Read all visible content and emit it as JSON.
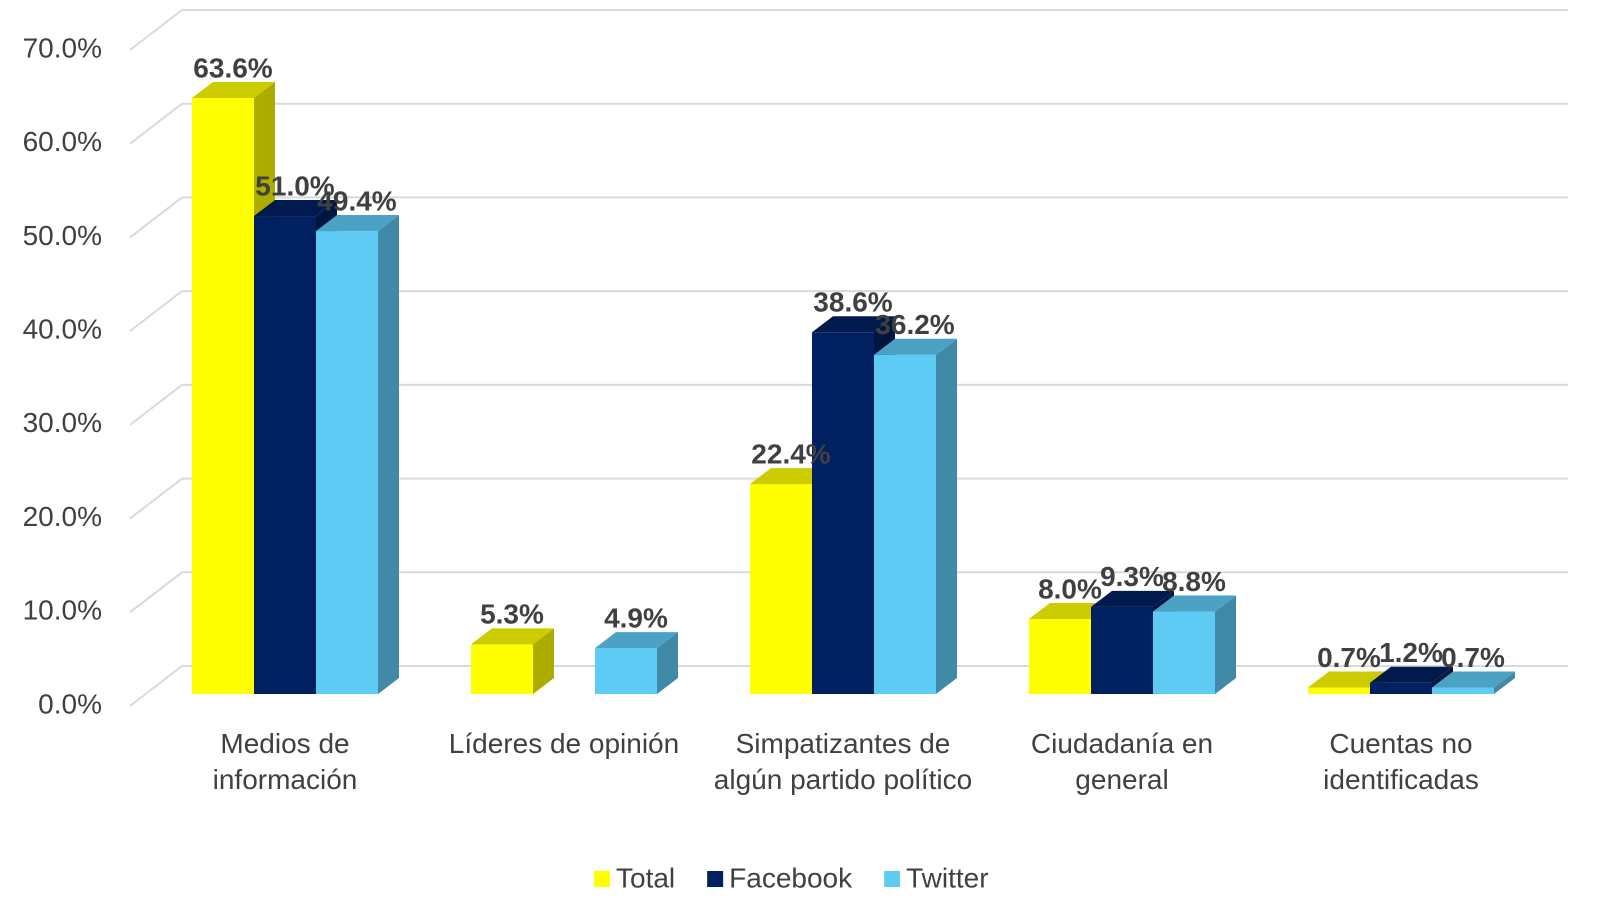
{
  "chart_data": {
    "type": "bar3d",
    "categories": [
      "Medios de información",
      "Líderes de opinión",
      "Simpatizantes de algún partido político",
      "Ciudadanía en general",
      "Cuentas no identificadas"
    ],
    "series": [
      {
        "name": "Total",
        "color": "#ffff00",
        "values": [
          63.6,
          5.3,
          22.4,
          8.0,
          0.7
        ],
        "value_labels": [
          "63.6%",
          "5.3%",
          "22.4%",
          "8.0%",
          "0.7%"
        ]
      },
      {
        "name": "Facebook",
        "color": "#002060",
        "values": [
          51.0,
          null,
          38.6,
          9.3,
          1.2
        ],
        "value_labels": [
          "51.0%",
          null,
          "38.6%",
          "9.3%",
          "1.2%"
        ]
      },
      {
        "name": "Twitter",
        "color": "#5ecbf5",
        "values": [
          49.4,
          4.9,
          36.2,
          8.8,
          0.7
        ],
        "value_labels": [
          "49.4%",
          "4.9%",
          "36.2%",
          "8.8%",
          "0.7%"
        ]
      }
    ],
    "ylim": [
      0,
      70
    ],
    "yticks": [
      {
        "value": 0,
        "label": "0.0%"
      },
      {
        "value": 10,
        "label": "10.0%"
      },
      {
        "value": 20,
        "label": "20.0%"
      },
      {
        "value": 30,
        "label": "30.0%"
      },
      {
        "value": 40,
        "label": "40.0%"
      },
      {
        "value": 50,
        "label": "50.0%"
      },
      {
        "value": 60,
        "label": "60.0%"
      },
      {
        "value": 70,
        "label": "70.0%"
      }
    ],
    "grid": true,
    "legend": "bottom"
  }
}
